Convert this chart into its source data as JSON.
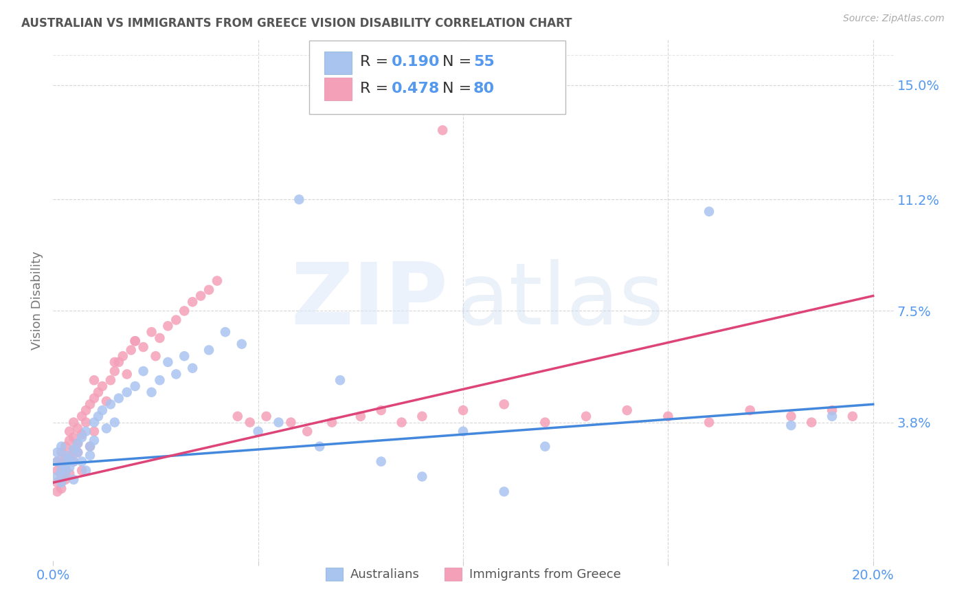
{
  "title": "AUSTRALIAN VS IMMIGRANTS FROM GREECE VISION DISABILITY CORRELATION CHART",
  "source": "Source: ZipAtlas.com",
  "ylabel": "Vision Disability",
  "xlim": [
    0.0,
    0.205
  ],
  "ylim": [
    -0.008,
    0.165
  ],
  "R_blue": 0.19,
  "N_blue": 55,
  "R_pink": 0.478,
  "N_pink": 80,
  "blue_color": "#aac4f0",
  "pink_color": "#f4a0b8",
  "line_blue": "#4488dd",
  "line_pink": "#dd4477",
  "title_color": "#555555",
  "axis_color": "#5599ee",
  "background_color": "#ffffff",
  "right_yticks": [
    0.038,
    0.075,
    0.112,
    0.15
  ],
  "right_ytick_labels": [
    "3.8%",
    "7.5%",
    "11.2%",
    "15.0%"
  ],
  "blue_line_x": [
    0.0,
    0.2
  ],
  "blue_line_y": [
    0.024,
    0.044
  ],
  "pink_line_x": [
    0.0,
    0.2
  ],
  "pink_line_y": [
    0.018,
    0.08
  ],
  "blue_x": [
    0.001,
    0.001,
    0.001,
    0.002,
    0.002,
    0.002,
    0.003,
    0.003,
    0.003,
    0.004,
    0.004,
    0.005,
    0.005,
    0.005,
    0.006,
    0.006,
    0.007,
    0.007,
    0.008,
    0.008,
    0.009,
    0.009,
    0.01,
    0.01,
    0.011,
    0.012,
    0.013,
    0.014,
    0.015,
    0.016,
    0.018,
    0.02,
    0.022,
    0.024,
    0.026,
    0.028,
    0.03,
    0.032,
    0.034,
    0.038,
    0.042,
    0.046,
    0.05,
    0.055,
    0.06,
    0.065,
    0.07,
    0.08,
    0.09,
    0.1,
    0.11,
    0.12,
    0.16,
    0.18,
    0.19
  ],
  "blue_y": [
    0.02,
    0.025,
    0.028,
    0.018,
    0.022,
    0.03,
    0.024,
    0.027,
    0.021,
    0.026,
    0.023,
    0.029,
    0.019,
    0.025,
    0.031,
    0.028,
    0.033,
    0.025,
    0.035,
    0.022,
    0.03,
    0.027,
    0.032,
    0.038,
    0.04,
    0.042,
    0.036,
    0.044,
    0.038,
    0.046,
    0.048,
    0.05,
    0.055,
    0.048,
    0.052,
    0.058,
    0.054,
    0.06,
    0.056,
    0.062,
    0.068,
    0.064,
    0.035,
    0.038,
    0.112,
    0.03,
    0.052,
    0.025,
    0.02,
    0.035,
    0.015,
    0.03,
    0.108,
    0.037,
    0.04
  ],
  "pink_x": [
    0.001,
    0.001,
    0.001,
    0.001,
    0.002,
    0.002,
    0.002,
    0.002,
    0.003,
    0.003,
    0.003,
    0.003,
    0.003,
    0.004,
    0.004,
    0.004,
    0.004,
    0.005,
    0.005,
    0.005,
    0.005,
    0.006,
    0.006,
    0.006,
    0.007,
    0.007,
    0.007,
    0.008,
    0.008,
    0.009,
    0.009,
    0.01,
    0.01,
    0.011,
    0.012,
    0.013,
    0.014,
    0.015,
    0.016,
    0.017,
    0.018,
    0.019,
    0.02,
    0.022,
    0.024,
    0.026,
    0.028,
    0.03,
    0.032,
    0.034,
    0.036,
    0.038,
    0.04,
    0.045,
    0.048,
    0.052,
    0.058,
    0.062,
    0.068,
    0.075,
    0.08,
    0.085,
    0.09,
    0.095,
    0.1,
    0.11,
    0.12,
    0.13,
    0.14,
    0.15,
    0.16,
    0.17,
    0.18,
    0.185,
    0.19,
    0.195,
    0.025,
    0.01,
    0.015,
    0.02
  ],
  "pink_y": [
    0.018,
    0.022,
    0.025,
    0.015,
    0.02,
    0.024,
    0.028,
    0.016,
    0.022,
    0.026,
    0.019,
    0.03,
    0.023,
    0.027,
    0.032,
    0.021,
    0.035,
    0.029,
    0.033,
    0.025,
    0.038,
    0.031,
    0.036,
    0.028,
    0.04,
    0.034,
    0.022,
    0.042,
    0.038,
    0.044,
    0.03,
    0.046,
    0.035,
    0.048,
    0.05,
    0.045,
    0.052,
    0.055,
    0.058,
    0.06,
    0.054,
    0.062,
    0.065,
    0.063,
    0.068,
    0.066,
    0.07,
    0.072,
    0.075,
    0.078,
    0.08,
    0.082,
    0.085,
    0.04,
    0.038,
    0.04,
    0.038,
    0.035,
    0.038,
    0.04,
    0.042,
    0.038,
    0.04,
    0.135,
    0.042,
    0.044,
    0.038,
    0.04,
    0.042,
    0.04,
    0.038,
    0.042,
    0.04,
    0.038,
    0.042,
    0.04,
    0.06,
    0.052,
    0.058,
    0.065
  ]
}
